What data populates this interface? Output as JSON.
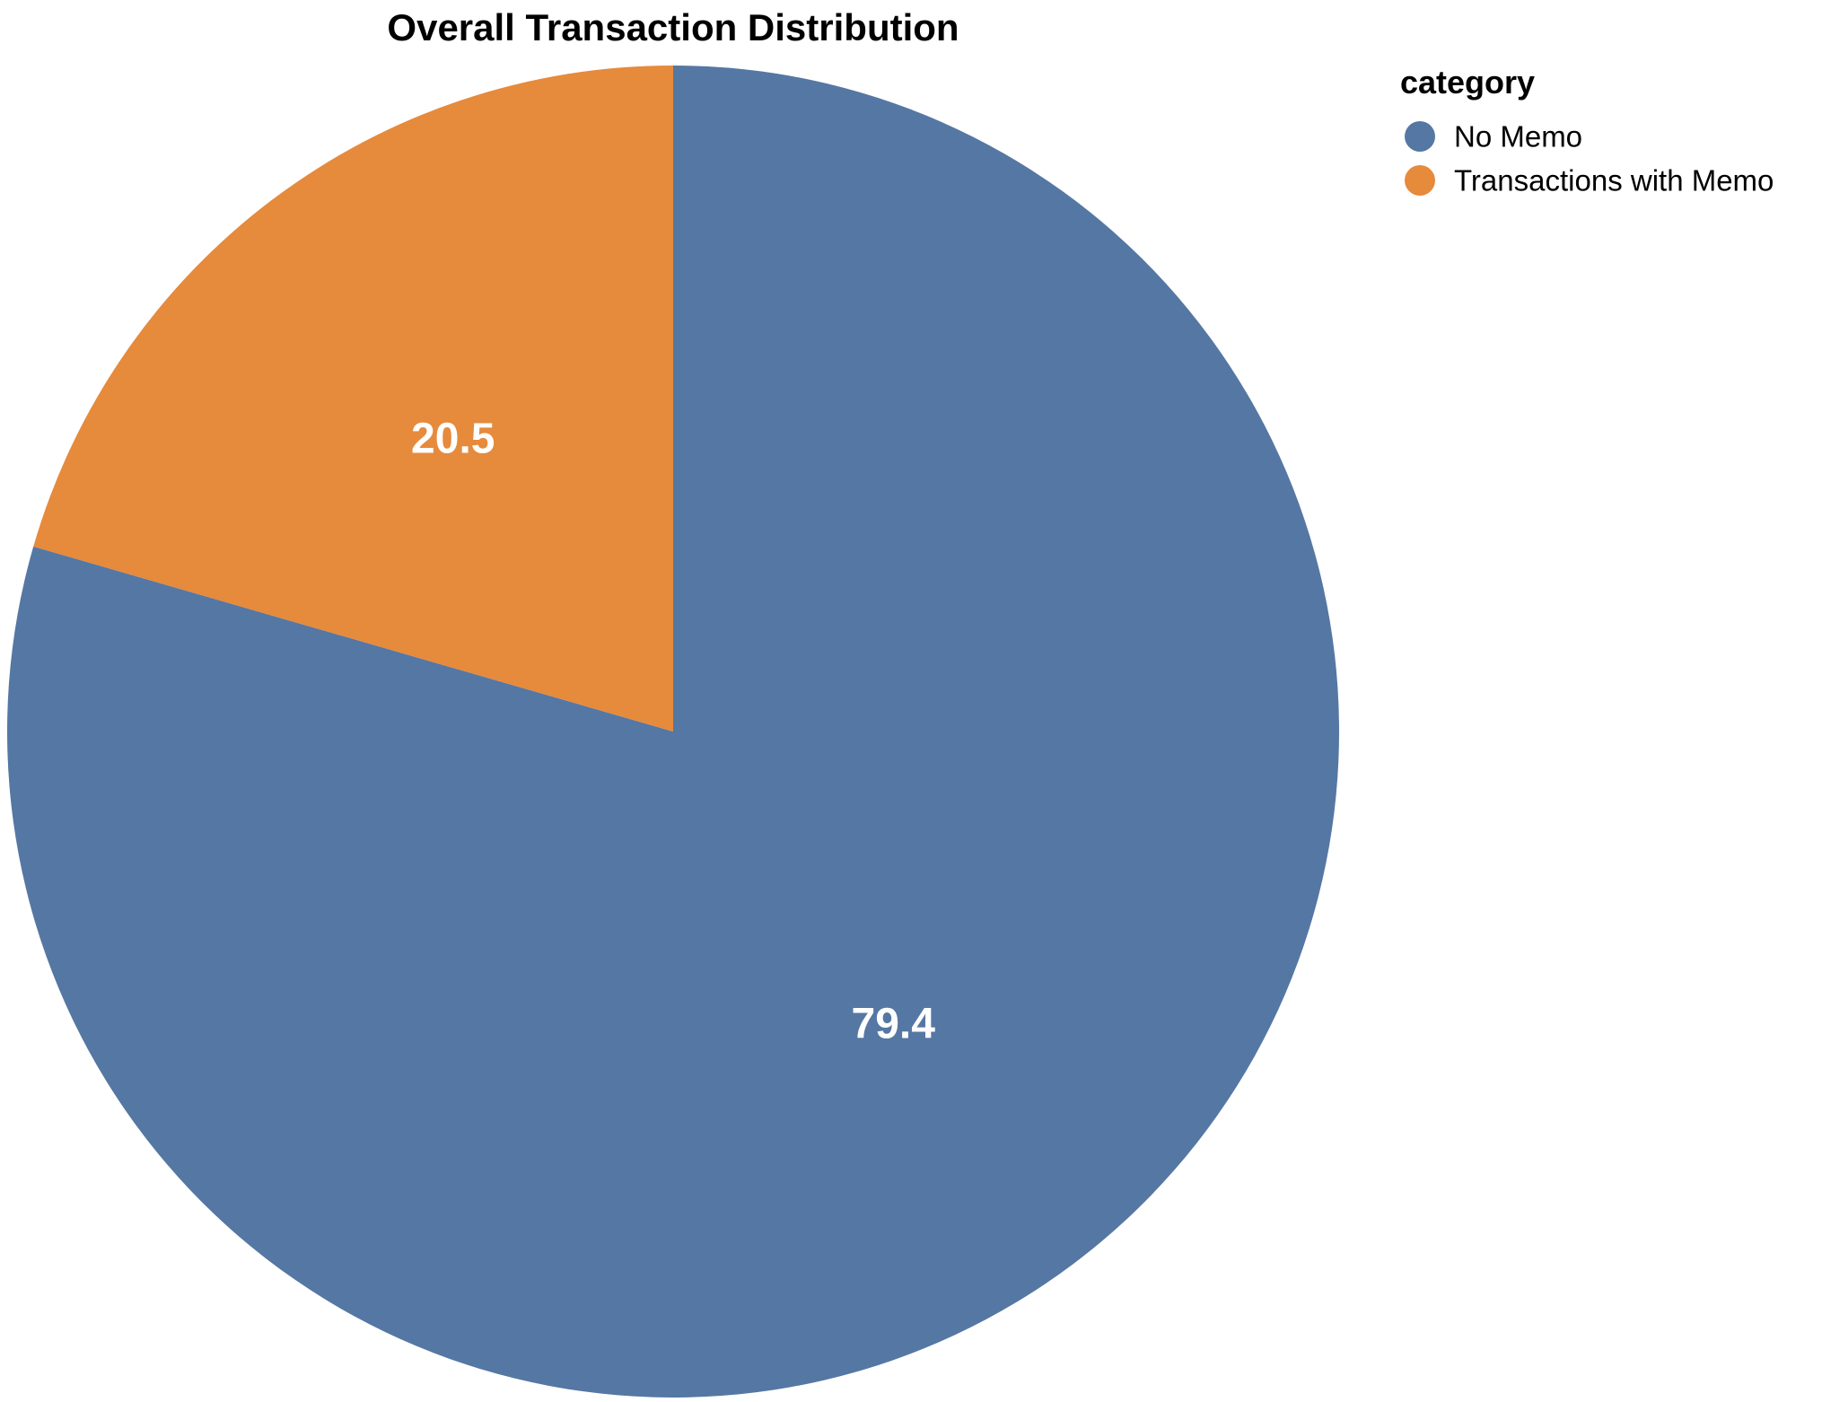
{
  "chart_data": {
    "type": "pie",
    "title": "Overall Transaction Distribution",
    "legend": {
      "title": "category",
      "position": "top-right"
    },
    "slices": [
      {
        "category": "No Memo",
        "value": 79.4,
        "label": "79.4",
        "color": "#5577a3"
      },
      {
        "category": "Transactions with Memo",
        "value": 20.5,
        "label": "20.5",
        "color": "#e68a3c"
      }
    ]
  }
}
